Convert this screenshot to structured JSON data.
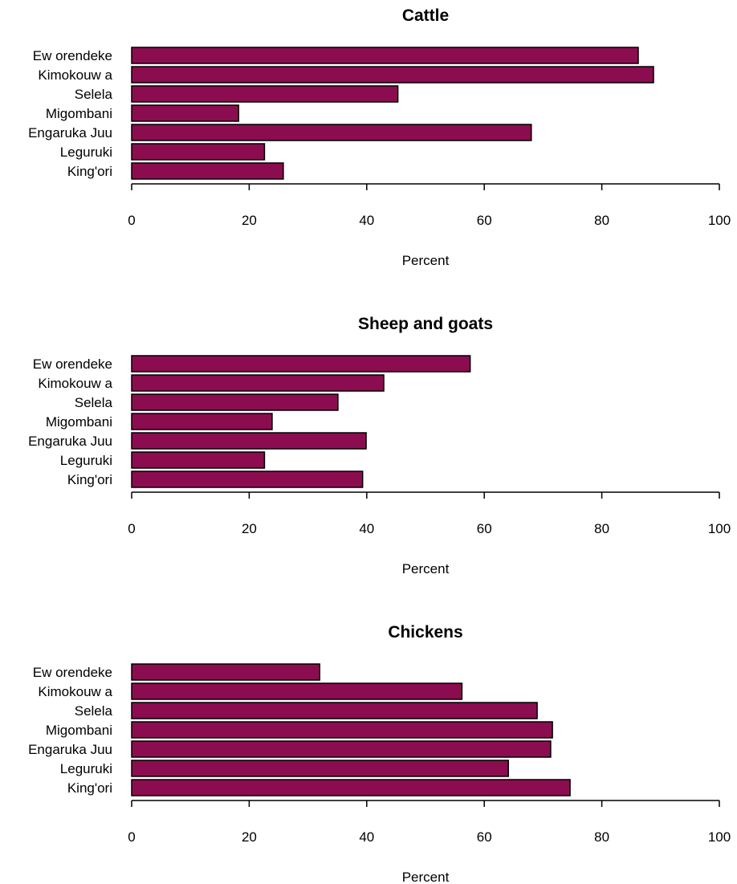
{
  "chart_data": [
    {
      "type": "bar",
      "orientation": "horizontal",
      "title": "Cattle",
      "xlabel": "Percent",
      "ylabel": "",
      "xlim": [
        0,
        100
      ],
      "ticks": [
        "0",
        "20",
        "40",
        "60",
        "80",
        "100"
      ],
      "tick_values": [
        0,
        20,
        40,
        60,
        80,
        100
      ],
      "categories": [
        "Ew orendeke",
        "Kimokouw a",
        "Selela",
        "Migombani",
        "Engaruka Juu",
        "Leguruki",
        "King'ori"
      ],
      "values": [
        86.2,
        88.8,
        45.3,
        18.2,
        68,
        22.6,
        25.8
      ],
      "bar_color": "#8B0D4F",
      "grid": false
    },
    {
      "type": "bar",
      "orientation": "horizontal",
      "title": "Sheep and goats",
      "xlabel": "Percent",
      "ylabel": "",
      "xlim": [
        0,
        100
      ],
      "ticks": [
        "0",
        "20",
        "40",
        "60",
        "80",
        "100"
      ],
      "tick_values": [
        0,
        20,
        40,
        60,
        80,
        100
      ],
      "categories": [
        "Ew orendeke",
        "Kimokouw a",
        "Selela",
        "Migombani",
        "Engaruka Juu",
        "Leguruki",
        "King'ori"
      ],
      "values": [
        57.6,
        42.9,
        35.1,
        23.9,
        39.9,
        22.6,
        39.3
      ],
      "bar_color": "#8B0D4F",
      "grid": false
    },
    {
      "type": "bar",
      "orientation": "horizontal",
      "title": "Chickens",
      "xlabel": "Percent",
      "ylabel": "",
      "xlim": [
        0,
        100
      ],
      "ticks": [
        "0",
        "20",
        "40",
        "60",
        "80",
        "100"
      ],
      "tick_values": [
        0,
        20,
        40,
        60,
        80,
        100
      ],
      "categories": [
        "Ew orendeke",
        "Kimokouw a",
        "Selela",
        "Migombani",
        "Engaruka Juu",
        "Leguruki",
        "King'ori"
      ],
      "values": [
        32,
        56.2,
        69,
        71.6,
        71.3,
        64.1,
        74.6
      ],
      "bar_color": "#8B0D4F",
      "grid": false
    }
  ]
}
